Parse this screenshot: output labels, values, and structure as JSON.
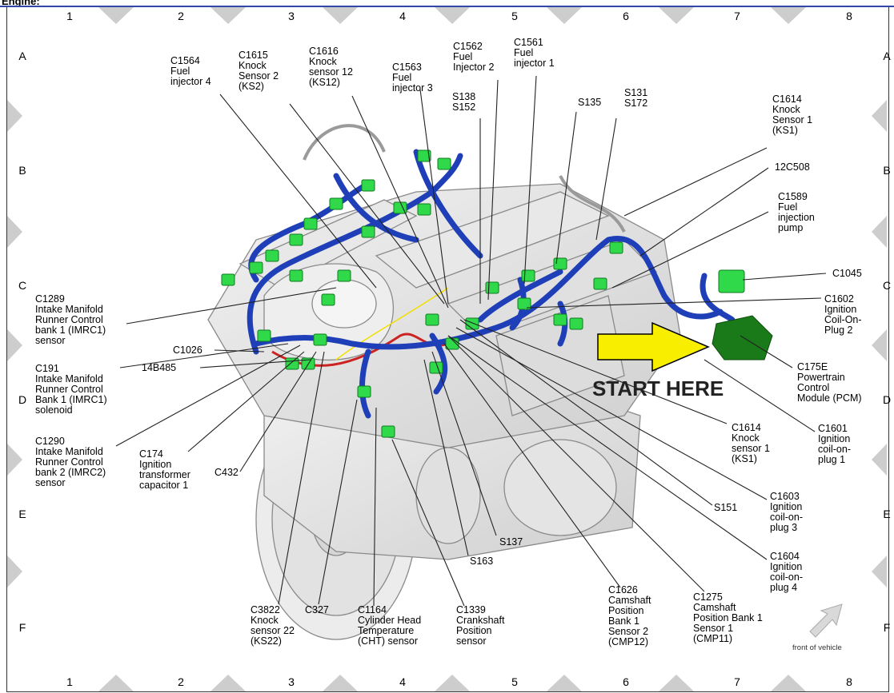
{
  "header": {
    "title": "Engine:"
  },
  "grid": {
    "columns": [
      "1",
      "2",
      "3",
      "4",
      "5",
      "6",
      "7",
      "8"
    ],
    "rows": [
      "A",
      "B",
      "C",
      "D",
      "E",
      "F"
    ]
  },
  "callouts": {
    "c1564": [
      "C1564",
      "Fuel",
      "injector 4"
    ],
    "c1615": [
      "C1615",
      "Knock",
      "Sensor 2",
      "(KS2)"
    ],
    "c1616": [
      "C1616",
      "Knock",
      "sensor 12",
      "(KS12)"
    ],
    "c1563": [
      "C1563",
      "Fuel",
      "injector 3"
    ],
    "c1562": [
      "C1562",
      "Fuel",
      "Injector 2"
    ],
    "c1561": [
      "C1561",
      "Fuel",
      "injector 1"
    ],
    "s138": [
      "S138",
      "S152"
    ],
    "s135": [
      "S135"
    ],
    "s131": [
      "S131",
      "S172"
    ],
    "c1614a": [
      "C1614",
      "Knock",
      "Sensor 1",
      "(KS1)"
    ],
    "c12c508": [
      "12C508"
    ],
    "c1589": [
      "C1589",
      "Fuel",
      "injection",
      "pump"
    ],
    "c1045": [
      "C1045"
    ],
    "c1602": [
      "C1602",
      "Ignition",
      "Coil-On-",
      "Plug 2"
    ],
    "c175e": [
      "C175E",
      "Powertrain",
      "Control",
      "Module (PCM)"
    ],
    "c1601": [
      "C1601",
      "Ignition",
      "coil-on-",
      "plug 1"
    ],
    "c1614b": [
      "C1614",
      "Knock",
      "sensor 1",
      "(KS1)"
    ],
    "c1603": [
      "C1603",
      "Ignition",
      "coil-on-",
      "plug 3"
    ],
    "s151": [
      "S151"
    ],
    "c1604": [
      "C1604",
      "Ignition",
      "coil-on-",
      "plug 4"
    ],
    "c1275": [
      "C1275",
      "Camshaft",
      "Position Bank 1",
      "Sensor 1",
      "(CMP11)"
    ],
    "c1626": [
      "C1626",
      "Camshaft",
      "Position",
      "Bank 1",
      "Sensor 2",
      "(CMP12)"
    ],
    "s137": [
      "S137"
    ],
    "s163": [
      "S163"
    ],
    "c1339": [
      "C1339",
      "Crankshaft",
      "Position",
      "sensor"
    ],
    "c1164": [
      "C1164",
      "Cylinder Head",
      "Temperature",
      "(CHT) sensor"
    ],
    "c327": [
      "C327"
    ],
    "c3822": [
      "C3822",
      "Knock",
      "sensor 22",
      "(KS22)"
    ],
    "c432": [
      "C432"
    ],
    "c174": [
      "C174",
      "Ignition",
      "transformer",
      "capacitor 1"
    ],
    "c1290": [
      "C1290",
      "Intake Manifold",
      "Runner Control",
      "bank 2 (IMRC2)",
      "sensor"
    ],
    "c191": [
      "C191",
      "Intake Manifold",
      "Runner Control",
      "Bank 1 (IMRC1)",
      "solenoid"
    ],
    "c1289": [
      "C1289",
      "Intake Manifold",
      "Runner Control",
      "bank 1 (IMRC1)",
      "sensor"
    ],
    "c1026": [
      "C1026"
    ],
    "c14b485": [
      "14B485"
    ]
  },
  "annotation": {
    "label": "START HERE",
    "arrow_color": "#f7ee00"
  },
  "front_label": "front of vehicle",
  "colors": {
    "harness": "#1f3fb8",
    "connector": "#2fd94a",
    "pcm": "#1a7a1a",
    "frame_tri": "#c8c8c8",
    "header_rule": "#3048a8"
  }
}
